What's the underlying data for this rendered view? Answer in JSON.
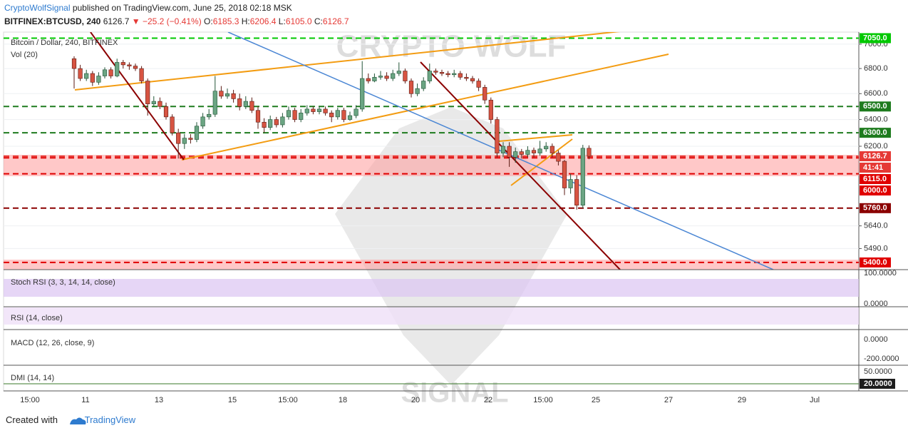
{
  "header": {
    "author": "CryptoWolfSignal",
    "published": "published on TradingView.com, June 25, 2018 02:18 MSK",
    "symbol": "BITFINEX:BTCUSD, 240",
    "last": "6126.7",
    "change": "▼ −25.2 (−0.41%)",
    "ohlc": [
      {
        "k": "O:",
        "v": "6185.3"
      },
      {
        "k": "H:",
        "v": "6206.4"
      },
      {
        "k": "L:",
        "v": "6105.0"
      },
      {
        "k": "C:",
        "v": "6126.7"
      }
    ]
  },
  "chart_data": {
    "type": "candlestick",
    "title": "Bitcoin / Dollar, 240, BITFINEX",
    "subtitle": "Vol (20)",
    "up_color": "#6ba583",
    "down_color": "#d75442",
    "log_scale": true,
    "ylim": [
      5354,
      7101
    ],
    "yticks": [
      {
        "value": 7000,
        "label": "7000.0"
      },
      {
        "value": 6800,
        "label": "6800.0"
      },
      {
        "value": 6600,
        "label": "6600.0"
      },
      {
        "value": 6400,
        "label": "6400.0"
      },
      {
        "value": 6200,
        "label": "6200.0"
      },
      {
        "value": 5640,
        "label": "5640.0"
      },
      {
        "value": 5490,
        "label": "5490.0"
      }
    ],
    "levels": [
      {
        "value": 7050,
        "label": "7050.0",
        "color": "#00c800"
      },
      {
        "value": 6500,
        "label": "6500.0",
        "color": "#1e7b1e"
      },
      {
        "value": 6300,
        "label": "6300.0",
        "color": "#1e7b1e"
      },
      {
        "value": 6126.7,
        "label": "6126.7",
        "color": "#e53935"
      },
      {
        "value": 6115,
        "label": "6115.0",
        "color": "#e00000"
      },
      {
        "value": 6000,
        "label": "6000.0",
        "color": "#e00000"
      },
      {
        "value": 5760,
        "label": "5760.0",
        "color": "#8b0000"
      },
      {
        "value": 5400,
        "label": "5400.0",
        "color": "#e00000"
      }
    ],
    "countdown": "41:41",
    "xtick_labels": [
      "15:00",
      "11",
      "13",
      "15",
      "15:00",
      "18",
      "20",
      "22",
      "15:00",
      "25",
      "27",
      "29",
      "Jul"
    ],
    "open": [
      6880,
      6800,
      6720,
      6760,
      6690,
      6740,
      6790,
      6740,
      6850,
      6830,
      6820,
      6800,
      6700,
      6520,
      6540,
      6500,
      6420,
      6300,
      6220,
      6260,
      6250,
      6350,
      6420,
      6440,
      6620,
      6580,
      6600,
      6560,
      6500,
      6540,
      6470,
      6380,
      6340,
      6400,
      6360,
      6420,
      6470,
      6400,
      6450,
      6480,
      6460,
      6480,
      6450,
      6420,
      6470,
      6400,
      6430,
      6480,
      6720,
      6700,
      6730,
      6740,
      6720,
      6760,
      6780,
      6700,
      6600,
      6640,
      6700,
      6780,
      6770,
      6760,
      6750,
      6760,
      6730,
      6720,
      6700,
      6650,
      6550,
      6400,
      6150,
      6200,
      6120,
      6160,
      6140,
      6170,
      6150,
      6180,
      6200,
      6150,
      6090,
      5900,
      5960,
      5780,
      6185.3
    ],
    "high": [
      6900,
      6830,
      6790,
      6780,
      6770,
      6810,
      6810,
      6880,
      6870,
      6850,
      6840,
      6820,
      6720,
      6580,
      6570,
      6530,
      6440,
      6330,
      6290,
      6290,
      6380,
      6450,
      6480,
      6740,
      6660,
      6640,
      6630,
      6600,
      6580,
      6570,
      6500,
      6410,
      6430,
      6420,
      6450,
      6500,
      6490,
      6480,
      6510,
      6500,
      6500,
      6500,
      6470,
      6490,
      6490,
      6460,
      6510,
      6860,
      6760,
      6760,
      6780,
      6770,
      6790,
      6850,
      6800,
      6720,
      6680,
      6730,
      6840,
      6800,
      6790,
      6780,
      6790,
      6780,
      6760,
      6740,
      6720,
      6670,
      6570,
      6420,
      6230,
      6230,
      6190,
      6180,
      6200,
      6190,
      6240,
      6230,
      6220,
      6170,
      6100,
      6000,
      5990,
      6210,
      6206.4
    ],
    "low": [
      6640,
      6700,
      6700,
      6660,
      6670,
      6720,
      6720,
      6730,
      6800,
      6790,
      6780,
      6680,
      6430,
      6500,
      6480,
      6400,
      6280,
      6110,
      6180,
      6220,
      6230,
      6330,
      6400,
      6420,
      6560,
      6560,
      6530,
      6470,
      6480,
      6450,
      6330,
      6300,
      6320,
      6340,
      6340,
      6400,
      6380,
      6380,
      6430,
      6440,
      6440,
      6430,
      6380,
      6400,
      6380,
      6390,
      6410,
      6460,
      6680,
      6690,
      6710,
      6700,
      6700,
      6740,
      6680,
      6570,
      6580,
      6620,
      6680,
      6750,
      6740,
      6730,
      6730,
      6710,
      6700,
      6680,
      6620,
      6520,
      6370,
      6120,
      6120,
      6050,
      6080,
      6110,
      6120,
      6120,
      6130,
      6160,
      6120,
      6060,
      5850,
      5860,
      5750,
      5760,
      6105.0
    ],
    "close": [
      6800,
      6720,
      6760,
      6690,
      6740,
      6790,
      6740,
      6850,
      6830,
      6820,
      6800,
      6700,
      6520,
      6540,
      6500,
      6420,
      6300,
      6220,
      6260,
      6250,
      6350,
      6420,
      6440,
      6620,
      6580,
      6600,
      6560,
      6500,
      6540,
      6470,
      6380,
      6340,
      6400,
      6360,
      6420,
      6470,
      6400,
      6450,
      6480,
      6460,
      6480,
      6450,
      6420,
      6470,
      6400,
      6430,
      6480,
      6720,
      6700,
      6730,
      6740,
      6720,
      6760,
      6780,
      6700,
      6600,
      6640,
      6700,
      6780,
      6770,
      6760,
      6750,
      6760,
      6730,
      6720,
      6700,
      6650,
      6550,
      6400,
      6150,
      6200,
      6120,
      6160,
      6140,
      6170,
      6150,
      6180,
      6200,
      6150,
      6090,
      5900,
      5960,
      5780,
      6185.3,
      6126.7
    ],
    "panes": [
      {
        "name": "Stoch RSI (3, 3, 14, 14, close)",
        "ticks": [
          "100.0000",
          "0.0000"
        ]
      },
      {
        "name": "RSI (14, close)",
        "ticks": []
      },
      {
        "name": "MACD (12, 26, close, 9)",
        "ticks": [
          "0.0000",
          "-200.0000"
        ]
      },
      {
        "name": "DMI (14, 14)",
        "ticks": [
          "50.0000",
          "20.0000"
        ]
      }
    ]
  },
  "watermark": [
    "CRYPTO WOLF",
    "SIGNAL"
  ],
  "footer": {
    "created": "Created with",
    "brand": "TradingView"
  }
}
